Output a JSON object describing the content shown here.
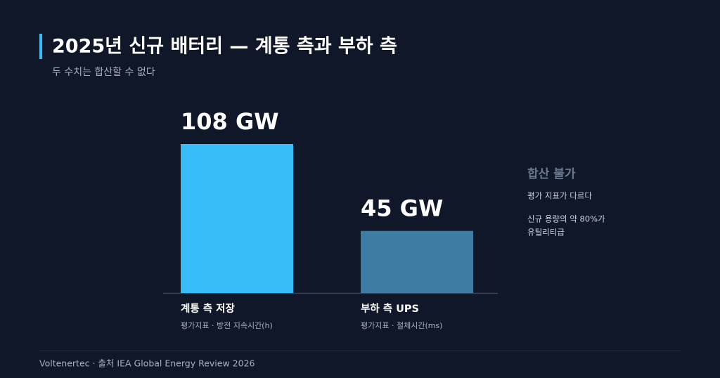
{
  "chart_data": {
    "type": "bar",
    "title": "2025년 신규 배터리 — 계통 측과 부하 측",
    "subtitle": "두 수치는 합산할 수 없다",
    "categories": [
      "계통 측 저장",
      "부하 측 UPS"
    ],
    "category_notes": [
      "평가지표 · 방전 지속시간(h)",
      "평가지표 · 절체시간(ms)"
    ],
    "values": [
      108,
      45
    ],
    "value_labels": [
      "108 GW",
      "45 GW"
    ],
    "colors": [
      "#38bdf8",
      "#3d7ca3"
    ],
    "annotation": {
      "title": "합산 불가",
      "lines": [
        "평가 지표가 다르다",
        "신규 용량의 약 80%가",
        "유틸리티급"
      ]
    },
    "source": "Voltenertec · 출처 IEA Global Energy Review 2026"
  }
}
